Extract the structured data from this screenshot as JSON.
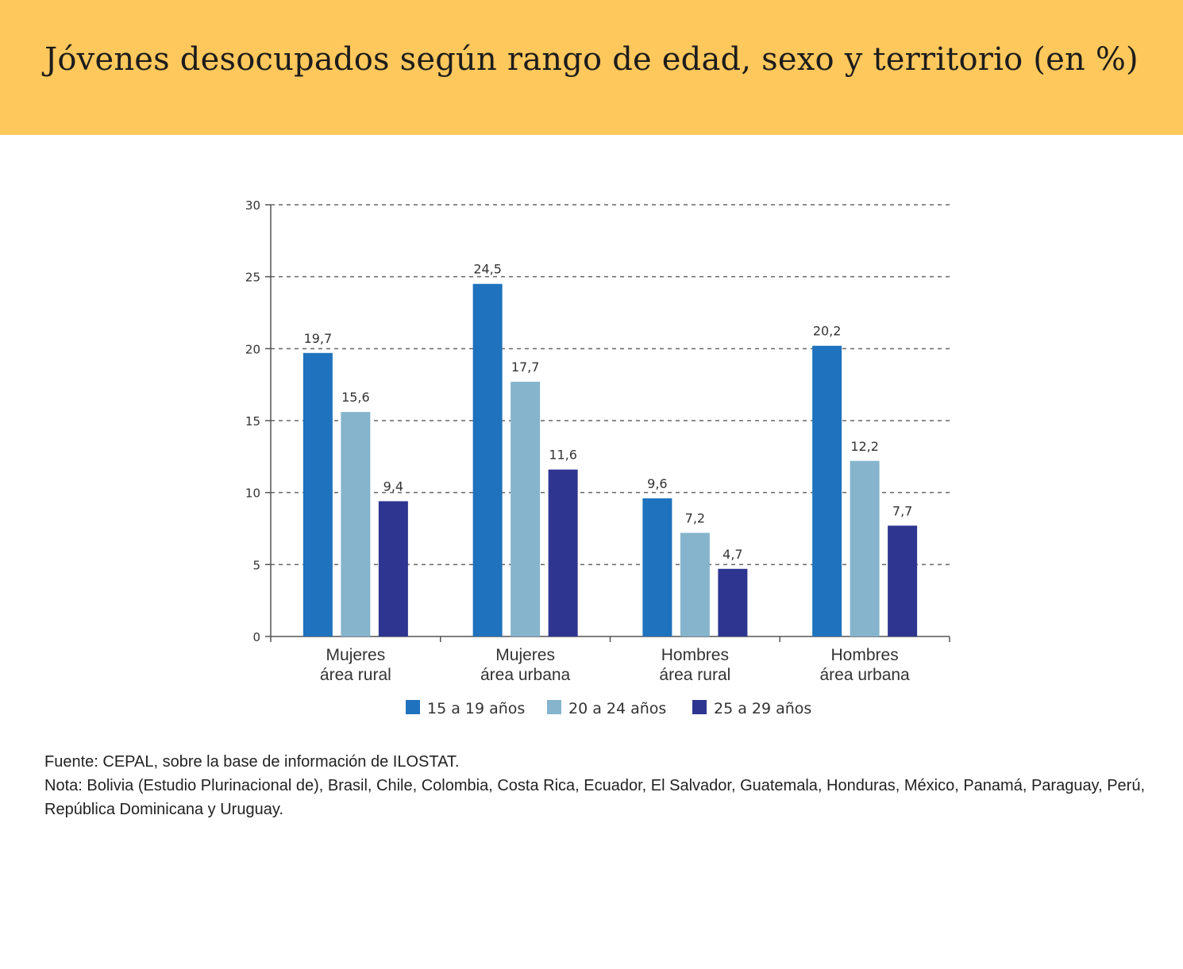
{
  "banner": {
    "title": "Jóvenes desocupados según rango de edad, sexo y territorio (en %)",
    "background": "#ffc85c"
  },
  "chart_data": {
    "type": "bar",
    "title": "",
    "xlabel": "",
    "ylabel": "",
    "ylim": [
      0,
      30
    ],
    "yticks": [
      0,
      5,
      10,
      15,
      20,
      25,
      30
    ],
    "grid": "dashed horizontal",
    "categories": [
      [
        "Mujeres",
        "área rural"
      ],
      [
        "Mujeres",
        "área urbana"
      ],
      [
        "Hombres",
        "área rural"
      ],
      [
        "Hombres",
        "área urbana"
      ]
    ],
    "series": [
      {
        "name": "15 a 19 años",
        "color": "#1f72bd",
        "values": [
          19.7,
          24.5,
          9.6,
          20.2
        ],
        "labels": [
          "19,7",
          "24,5",
          "9,6",
          "20,2"
        ]
      },
      {
        "name": "20 a 24 años",
        "color": "#85b4cc",
        "values": [
          15.6,
          17.7,
          7.2,
          12.2
        ],
        "labels": [
          "15,6",
          "17,7",
          "7,2",
          "12,2"
        ]
      },
      {
        "name": "25 a 29 años",
        "color": "#2e3590",
        "values": [
          9.4,
          11.6,
          4.7,
          7.7
        ],
        "labels": [
          "9,4",
          "11,6",
          "4,7",
          "7,7"
        ]
      }
    ],
    "legend": "bottom"
  },
  "notes": {
    "source": "Fuente: CEPAL, sobre la base de información de ILOSTAT.",
    "note": "Nota: Bolivia (Estudio Plurinacional de), Brasil, Chile, Colombia, Costa Rica, Ecuador, El Salvador, Guatemala, Honduras, México, Panamá, Paraguay, Perú, República Dominicana y Uruguay."
  }
}
